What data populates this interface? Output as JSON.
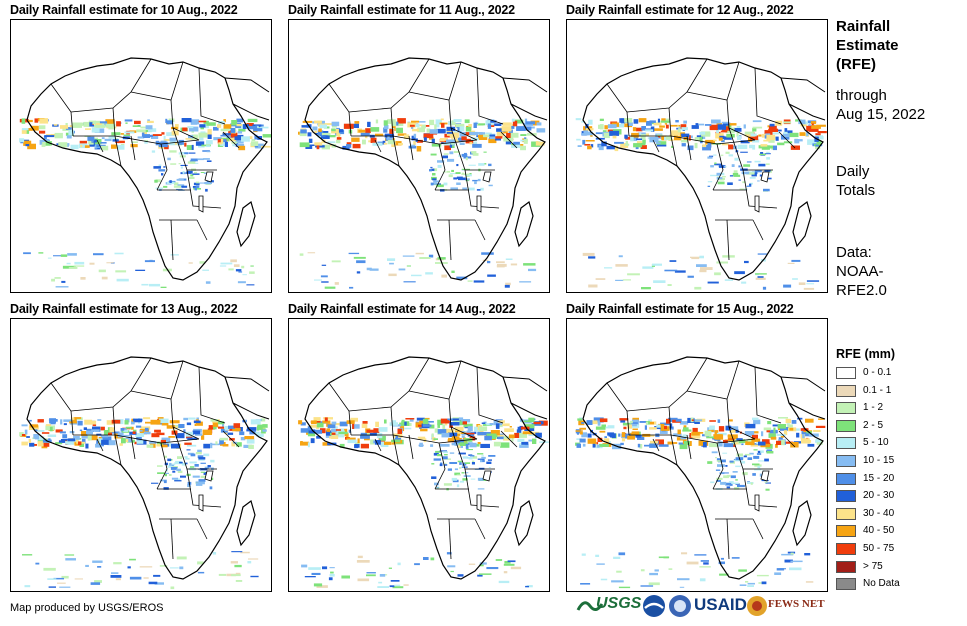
{
  "panels": [
    {
      "title": "Daily Rainfall estimate for 10 Aug., 2022"
    },
    {
      "title": "Daily Rainfall estimate for 11 Aug., 2022"
    },
    {
      "title": "Daily Rainfall estimate for 12 Aug., 2022"
    },
    {
      "title": "Daily Rainfall estimate for 13 Aug., 2022"
    },
    {
      "title": "Daily Rainfall estimate for 14 Aug., 2022"
    },
    {
      "title": "Daily Rainfall estimate for 15 Aug., 2022"
    }
  ],
  "side": {
    "title_line1": "Rainfall",
    "title_line2": "Estimate",
    "title_line3": "(RFE)",
    "through_1": "through",
    "through_2": "Aug 15, 2022",
    "totals_1": "Daily",
    "totals_2": "Totals",
    "data_1": "Data:",
    "data_2": "NOAA-",
    "data_3": "RFE2.0"
  },
  "legend": {
    "title": "RFE (mm)",
    "items": [
      {
        "label": "0 - 0.1",
        "color": "#ffffff"
      },
      {
        "label": "0.1 - 1",
        "color": "#ecd9b9"
      },
      {
        "label": "1 - 2",
        "color": "#c3f2b6"
      },
      {
        "label": "2 - 5",
        "color": "#7ee27a"
      },
      {
        "label": "5 - 10",
        "color": "#b8eef5"
      },
      {
        "label": "10 - 15",
        "color": "#86bcf2"
      },
      {
        "label": "15 - 20",
        "color": "#4f8fe8"
      },
      {
        "label": "20 - 30",
        "color": "#2160d9"
      },
      {
        "label": "30 - 40",
        "color": "#fce38a"
      },
      {
        "label": "40 - 50",
        "color": "#f6a413"
      },
      {
        "label": "50 - 75",
        "color": "#f03d0c"
      },
      {
        "label": "> 75",
        "color": "#a21e18"
      },
      {
        "label": "No Data",
        "color": "#8a8a8a"
      }
    ]
  },
  "credit": "Map produced by USGS/EROS",
  "logos": {
    "usgs": "USGS",
    "usaid": "USAID",
    "fews": "FEWS NET"
  }
}
